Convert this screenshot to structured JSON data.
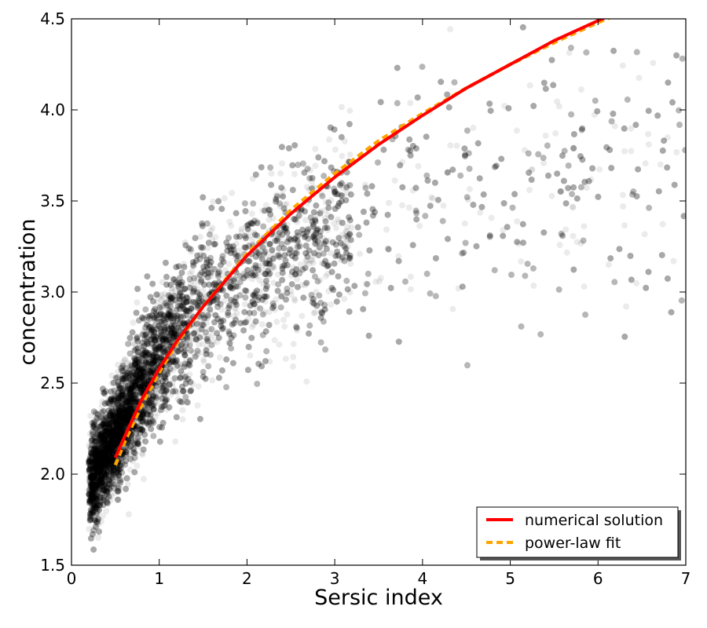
{
  "chart_data": {
    "type": "scatter",
    "title": "",
    "xlabel": "Sersic index",
    "ylabel": "concentration",
    "xlim": [
      0,
      7
    ],
    "ylim": [
      1.5,
      4.5
    ],
    "x_ticks": [
      "0",
      "1",
      "2",
      "3",
      "4",
      "5",
      "6",
      "7"
    ],
    "y_ticks": [
      "1.5",
      "2.0",
      "2.5",
      "3.0",
      "3.5",
      "4.0",
      "4.5"
    ],
    "grid": false,
    "legend": {
      "placement": "bottom-right"
    },
    "scatter": {
      "color": "#000000",
      "opacity": 0.08,
      "approx_points": 12000,
      "description_trend_x": [
        0.2,
        0.5,
        0.8,
        1.0,
        1.5,
        2.0,
        3.0,
        4.0,
        5.0,
        6.0,
        7.0
      ],
      "description_trend_y": [
        1.95,
        2.2,
        2.5,
        2.65,
        2.9,
        3.1,
        3.35,
        3.5,
        3.6,
        3.65,
        3.7
      ]
    },
    "series": [
      {
        "name": "numerical solution",
        "kind": "line",
        "color": "#ff0000",
        "style": "solid",
        "x": [
          0.5,
          0.6,
          0.8,
          1.0,
          1.2,
          1.5,
          2.0,
          2.5,
          3.0,
          3.5,
          4.0,
          4.5,
          5.0,
          5.5,
          6.0,
          6.2
        ],
        "y": [
          2.09,
          2.2,
          2.41,
          2.58,
          2.73,
          2.92,
          3.2,
          3.43,
          3.63,
          3.81,
          3.97,
          4.12,
          4.25,
          4.38,
          4.49,
          4.53
        ]
      },
      {
        "name": "power-law fit",
        "kind": "line",
        "color": "#ffa500",
        "style": "dashed",
        "x": [
          0.5,
          0.6,
          0.8,
          1.0,
          1.2,
          1.5,
          2.0,
          2.5,
          3.0,
          3.5,
          4.0,
          4.5,
          5.0,
          5.5,
          6.0,
          6.3
        ],
        "y": [
          2.05,
          2.17,
          2.38,
          2.56,
          2.72,
          2.92,
          3.21,
          3.45,
          3.65,
          3.83,
          3.98,
          4.12,
          4.25,
          4.37,
          4.48,
          4.54
        ]
      }
    ]
  }
}
